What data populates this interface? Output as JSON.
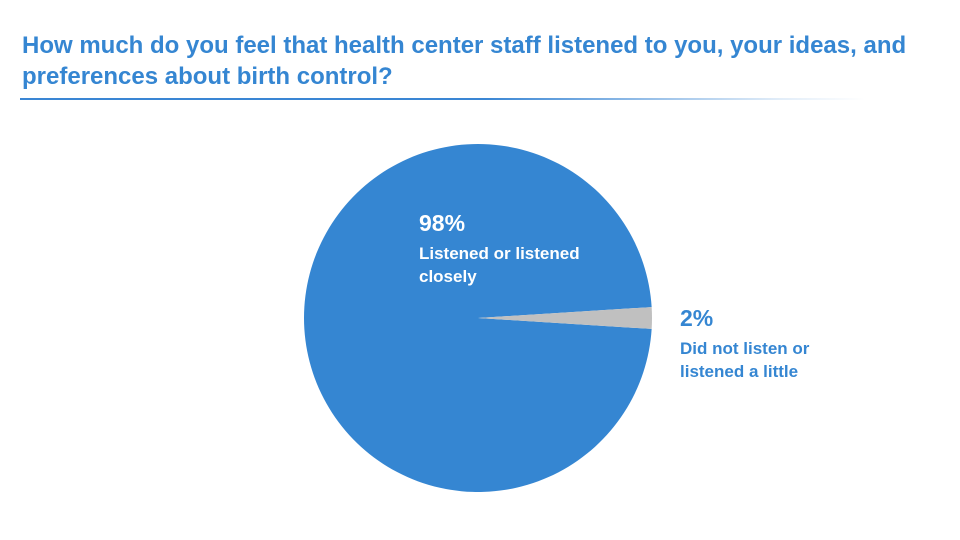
{
  "chart_data": {
    "type": "pie",
    "title": "How much do you feel that health center staff listened to you, your ideas, and preferences about birth control?",
    "slices": [
      {
        "label": "Listened or listened closely",
        "value": 98,
        "value_label": "98%",
        "color": "#3586d2"
      },
      {
        "label": "Did not listen or listened a little",
        "value": 2,
        "value_label": "2%",
        "color": "#c0c0c0"
      }
    ],
    "legend": "none",
    "labels": "on-chart"
  }
}
